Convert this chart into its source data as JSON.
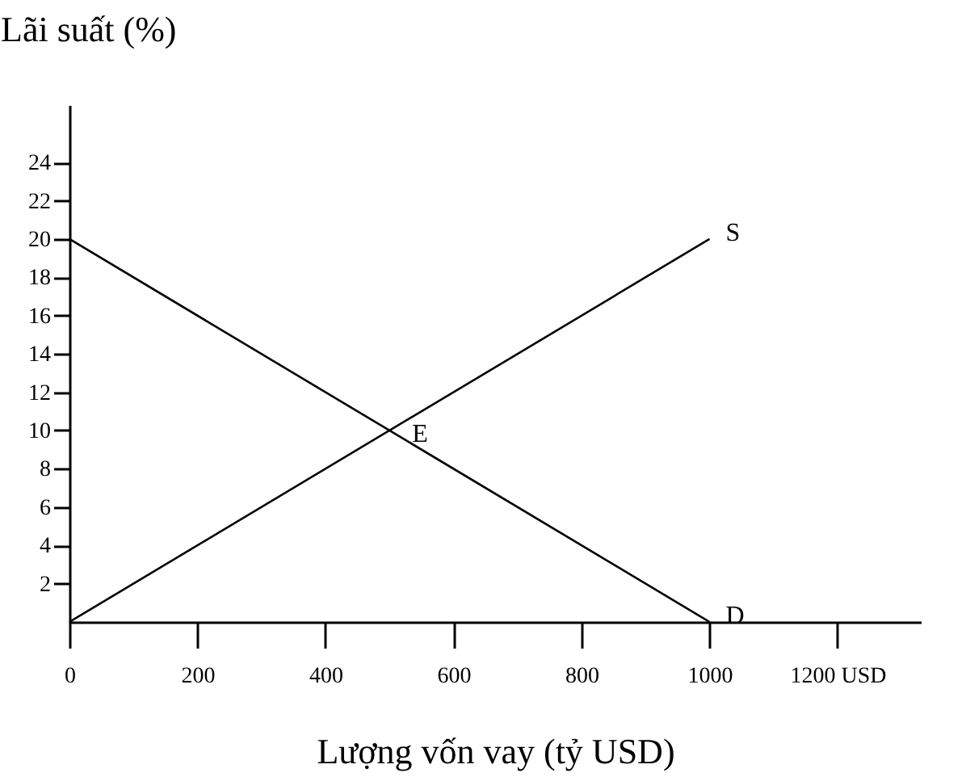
{
  "chart_data": {
    "type": "line",
    "ylabel": "Lãi suất (%)",
    "xlabel": "Lượng vốn vay (tỷ USD)",
    "x": [
      0,
      1000
    ],
    "series": [
      {
        "name": "S",
        "color": "#000000",
        "values": [
          0,
          20
        ]
      },
      {
        "name": "D",
        "color": "#000000",
        "values": [
          20,
          0
        ]
      }
    ],
    "annotations": [
      {
        "text": "E",
        "x": 500,
        "y": 10
      }
    ],
    "xlim": [
      0,
      1330
    ],
    "xticks": [
      0,
      200,
      400,
      600,
      800,
      1000,
      {
        "value": 1200,
        "label": "1200 USD"
      }
    ],
    "ylim": [
      0,
      27
    ],
    "yticks": [
      2,
      4,
      6,
      8,
      10,
      12,
      14,
      16,
      18,
      20,
      22,
      24
    ],
    "grid": false,
    "legend": false,
    "marker": "none",
    "line_style": "solid"
  }
}
